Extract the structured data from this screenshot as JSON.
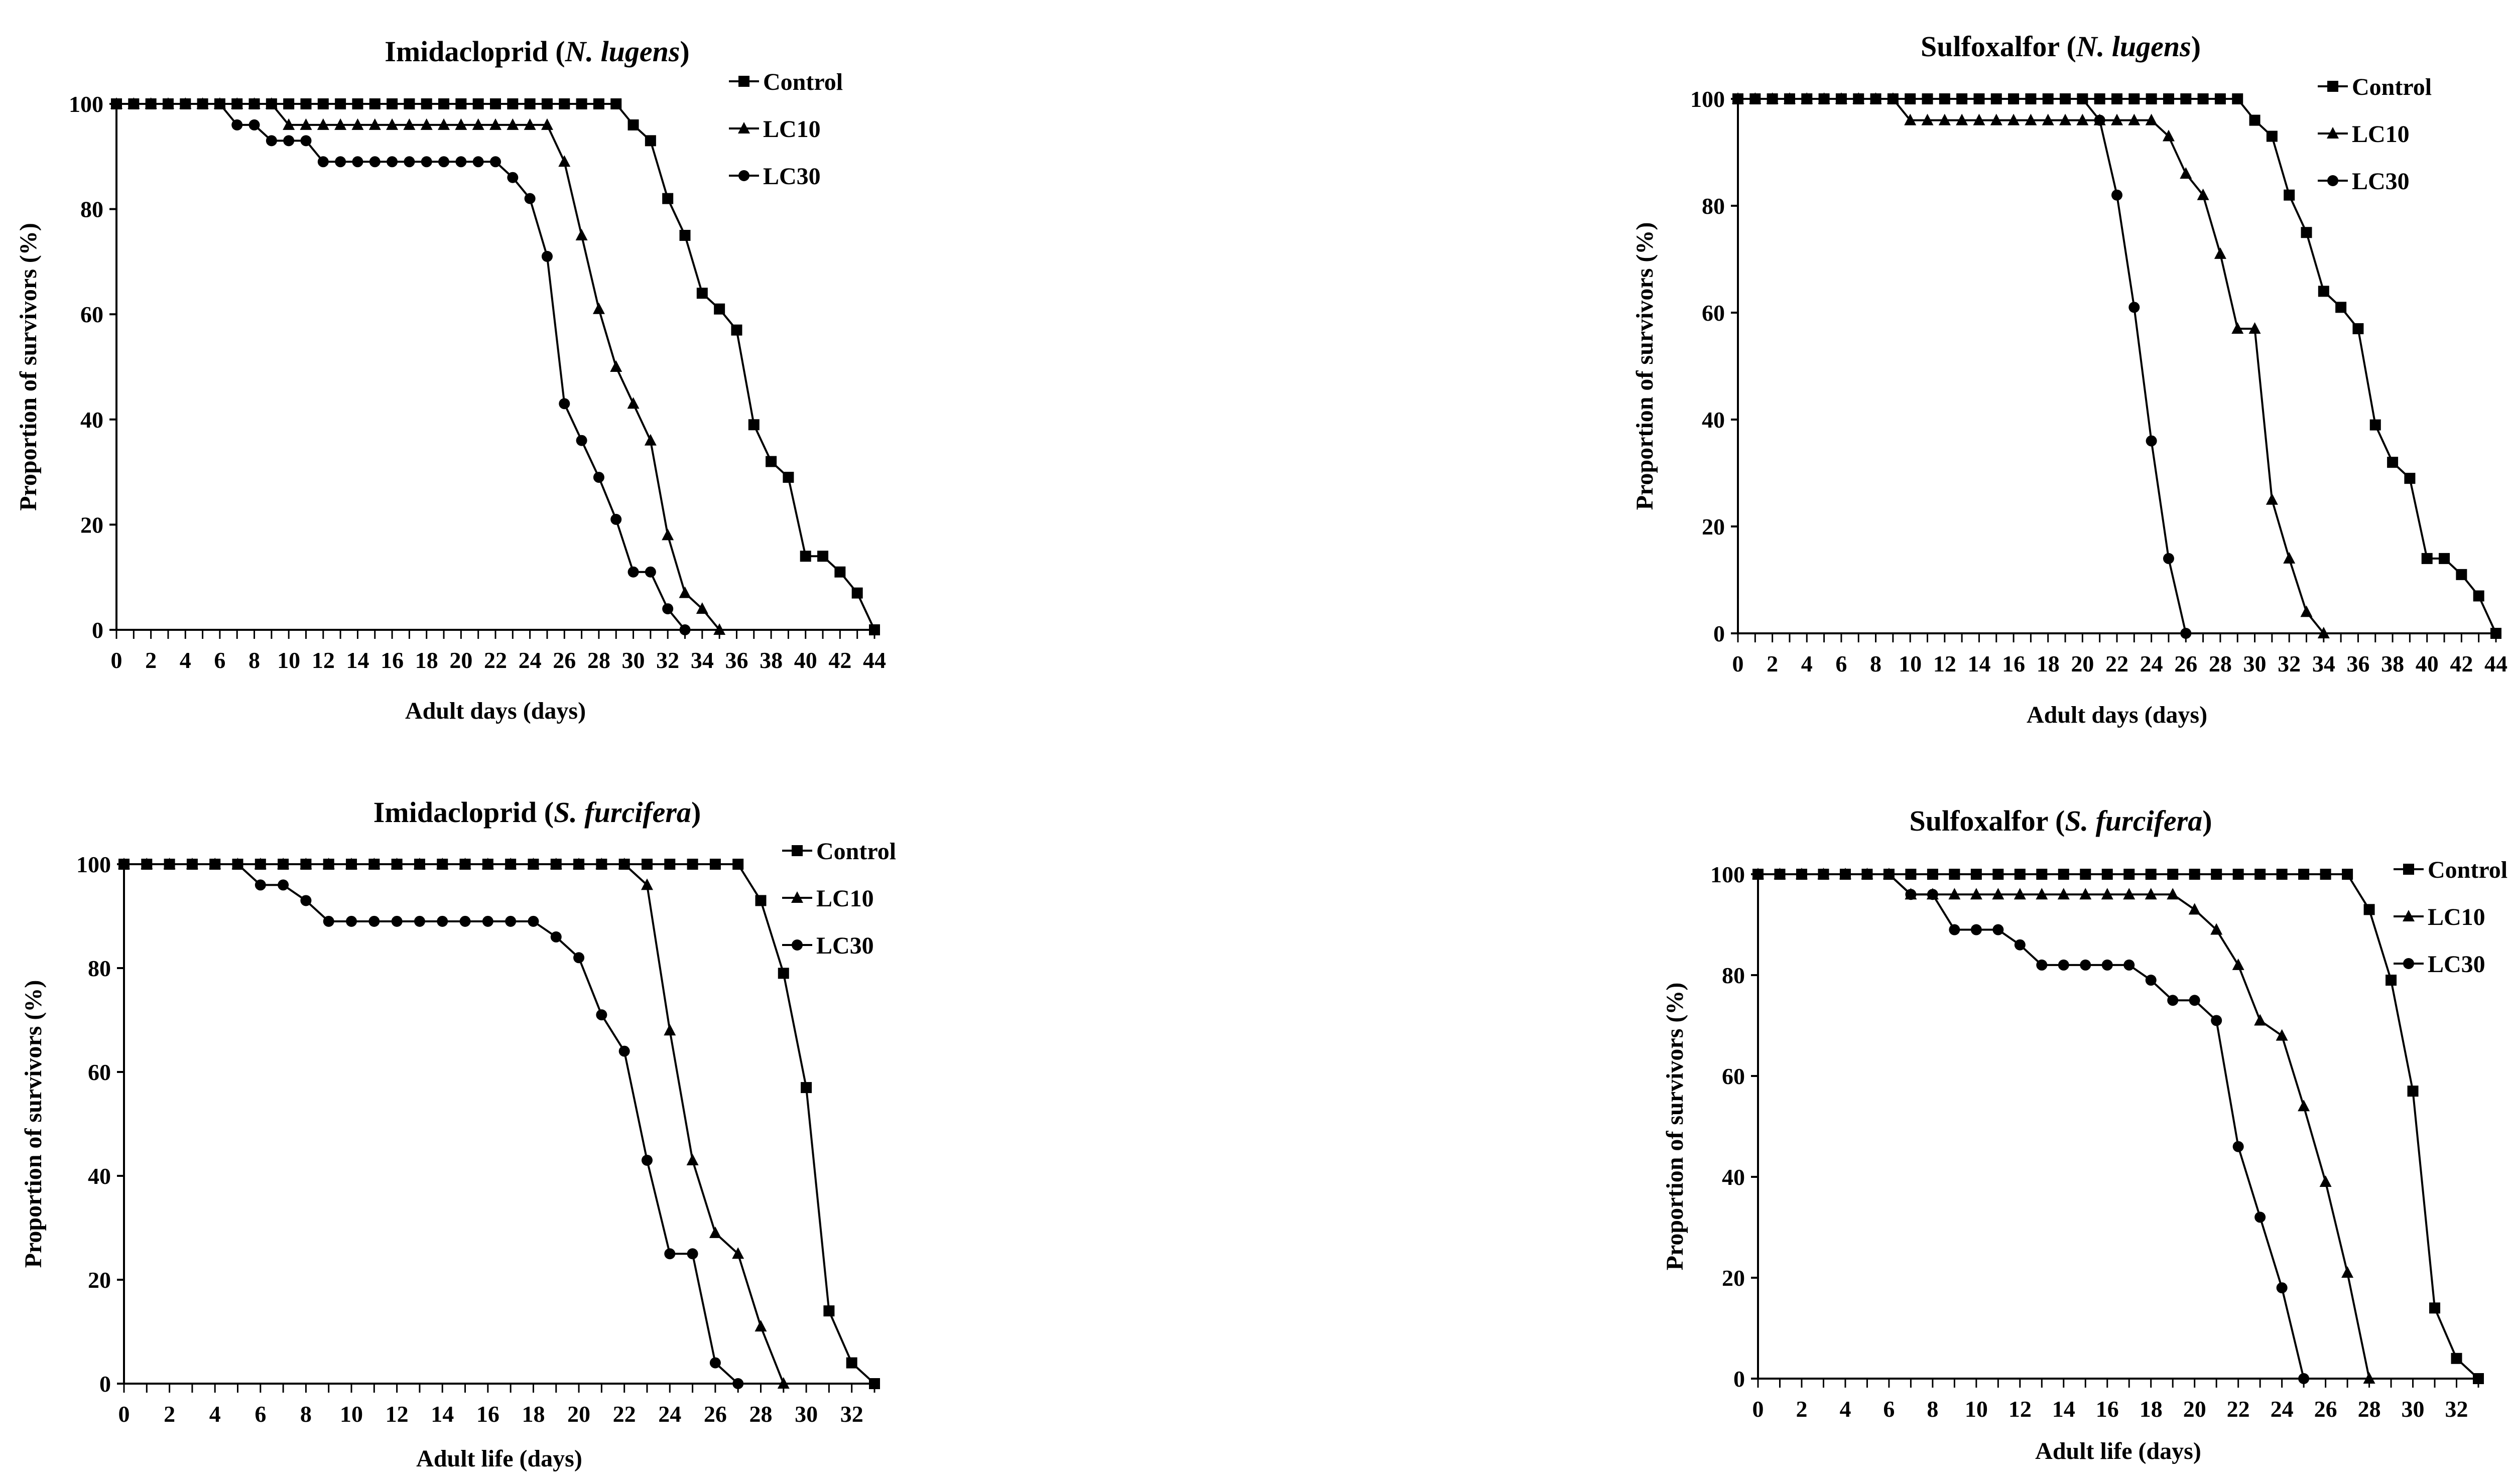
{
  "colors": {
    "line": "#000000",
    "background": "#ffffff"
  },
  "chart_data": [
    {
      "type": "line",
      "title_prefix": "Imidacloprid (",
      "title_species": "N. lugens",
      "title_suffix": ")",
      "xlabel": "Adult days (days)",
      "ylabel": "Proportion of survivors (%)",
      "xlim": [
        0,
        44
      ],
      "ylim": [
        0,
        100
      ],
      "xticks": [
        0,
        2,
        4,
        6,
        8,
        10,
        12,
        14,
        16,
        18,
        20,
        22,
        24,
        26,
        28,
        30,
        32,
        34,
        36,
        38,
        40,
        42,
        44
      ],
      "yticks": [
        0,
        20,
        40,
        60,
        80,
        100
      ],
      "legend_position": "top-right",
      "series": [
        {
          "name": "Control",
          "marker": "square",
          "x": [
            0,
            1,
            2,
            3,
            4,
            5,
            6,
            7,
            8,
            9,
            10,
            11,
            12,
            13,
            14,
            15,
            16,
            17,
            18,
            19,
            20,
            21,
            22,
            23,
            24,
            25,
            26,
            27,
            28,
            29,
            30,
            31,
            32,
            33,
            34,
            35,
            36,
            37,
            38,
            39,
            40,
            41,
            42,
            43,
            44
          ],
          "y": [
            100,
            100,
            100,
            100,
            100,
            100,
            100,
            100,
            100,
            100,
            100,
            100,
            100,
            100,
            100,
            100,
            100,
            100,
            100,
            100,
            100,
            100,
            100,
            100,
            100,
            100,
            100,
            100,
            100,
            100,
            96,
            93,
            82,
            75,
            64,
            61,
            57,
            39,
            32,
            29,
            14,
            14,
            11,
            7,
            0
          ]
        },
        {
          "name": "LC10",
          "marker": "triangle",
          "x": [
            0,
            1,
            2,
            3,
            4,
            5,
            6,
            7,
            8,
            9,
            10,
            11,
            12,
            13,
            14,
            15,
            16,
            17,
            18,
            19,
            20,
            21,
            22,
            23,
            24,
            25,
            26,
            27,
            28,
            29,
            30,
            31,
            32,
            33,
            34,
            35
          ],
          "y": [
            100,
            100,
            100,
            100,
            100,
            100,
            100,
            100,
            100,
            100,
            96,
            96,
            96,
            96,
            96,
            96,
            96,
            96,
            96,
            96,
            96,
            96,
            96,
            96,
            96,
            96,
            89,
            75,
            61,
            50,
            43,
            36,
            18,
            7,
            4,
            0
          ]
        },
        {
          "name": "LC30",
          "marker": "circle",
          "x": [
            0,
            1,
            2,
            3,
            4,
            5,
            6,
            7,
            8,
            9,
            10,
            11,
            12,
            13,
            14,
            15,
            16,
            17,
            18,
            19,
            20,
            21,
            22,
            23,
            24,
            25,
            26,
            27,
            28,
            29,
            30,
            31,
            32,
            33
          ],
          "y": [
            100,
            100,
            100,
            100,
            100,
            100,
            100,
            96,
            96,
            93,
            93,
            93,
            89,
            89,
            89,
            89,
            89,
            89,
            89,
            89,
            89,
            89,
            89,
            86,
            82,
            71,
            43,
            36,
            29,
            21,
            11,
            11,
            4,
            0
          ]
        }
      ]
    },
    {
      "type": "line",
      "title_prefix": "Sulfoxalfor (",
      "title_species": "N. lugens",
      "title_suffix": ")",
      "xlabel": "Adult days (days)",
      "ylabel": "Proportion of survivors (%)",
      "xlim": [
        0,
        44
      ],
      "ylim": [
        0,
        100
      ],
      "xticks": [
        0,
        2,
        4,
        6,
        8,
        10,
        12,
        14,
        16,
        18,
        20,
        22,
        24,
        26,
        28,
        30,
        32,
        34,
        36,
        38,
        40,
        42,
        44
      ],
      "yticks": [
        0,
        20,
        40,
        60,
        80,
        100
      ],
      "legend_position": "top-right",
      "series": [
        {
          "name": "Control",
          "marker": "square",
          "x": [
            0,
            1,
            2,
            3,
            4,
            5,
            6,
            7,
            8,
            9,
            10,
            11,
            12,
            13,
            14,
            15,
            16,
            17,
            18,
            19,
            20,
            21,
            22,
            23,
            24,
            25,
            26,
            27,
            28,
            29,
            30,
            31,
            32,
            33,
            34,
            35,
            36,
            37,
            38,
            39,
            40,
            41,
            42,
            43,
            44
          ],
          "y": [
            100,
            100,
            100,
            100,
            100,
            100,
            100,
            100,
            100,
            100,
            100,
            100,
            100,
            100,
            100,
            100,
            100,
            100,
            100,
            100,
            100,
            100,
            100,
            100,
            100,
            100,
            100,
            100,
            100,
            100,
            96,
            93,
            82,
            75,
            64,
            61,
            57,
            39,
            32,
            29,
            14,
            14,
            11,
            7,
            0
          ]
        },
        {
          "name": "LC10",
          "marker": "triangle",
          "x": [
            0,
            1,
            2,
            3,
            4,
            5,
            6,
            7,
            8,
            9,
            10,
            11,
            12,
            13,
            14,
            15,
            16,
            17,
            18,
            19,
            20,
            21,
            22,
            23,
            24,
            25,
            26,
            27,
            28,
            29,
            30,
            31,
            32,
            33,
            34
          ],
          "y": [
            100,
            100,
            100,
            100,
            100,
            100,
            100,
            100,
            100,
            100,
            96,
            96,
            96,
            96,
            96,
            96,
            96,
            96,
            96,
            96,
            96,
            96,
            96,
            96,
            96,
            93,
            86,
            82,
            71,
            57,
            57,
            25,
            14,
            4,
            0
          ]
        },
        {
          "name": "LC30",
          "marker": "circle",
          "x": [
            0,
            1,
            2,
            3,
            4,
            5,
            6,
            7,
            8,
            9,
            10,
            11,
            12,
            13,
            14,
            15,
            16,
            17,
            18,
            19,
            20,
            21,
            22,
            23,
            24,
            25,
            26
          ],
          "y": [
            100,
            100,
            100,
            100,
            100,
            100,
            100,
            100,
            100,
            100,
            100,
            100,
            100,
            100,
            100,
            100,
            100,
            100,
            100,
            100,
            100,
            96,
            82,
            61,
            36,
            14,
            0
          ]
        }
      ]
    },
    {
      "type": "line",
      "title_prefix": "Imidacloprid (",
      "title_species": "S. furcifera",
      "title_suffix": ")",
      "xlabel": "Adult  life (days)",
      "ylabel": "Proportion of survivors (%)",
      "xlim": [
        0,
        33
      ],
      "ylim": [
        0,
        100
      ],
      "xticks": [
        0,
        2,
        4,
        6,
        8,
        10,
        12,
        14,
        16,
        18,
        20,
        22,
        24,
        26,
        28,
        30,
        32
      ],
      "yticks": [
        0,
        20,
        40,
        60,
        80,
        100
      ],
      "legend_position": "top-right",
      "series": [
        {
          "name": "Control",
          "marker": "square",
          "x": [
            0,
            1,
            2,
            3,
            4,
            5,
            6,
            7,
            8,
            9,
            10,
            11,
            12,
            13,
            14,
            15,
            16,
            17,
            18,
            19,
            20,
            21,
            22,
            23,
            24,
            25,
            26,
            27,
            28,
            29,
            30,
            31,
            32,
            33
          ],
          "y": [
            100,
            100,
            100,
            100,
            100,
            100,
            100,
            100,
            100,
            100,
            100,
            100,
            100,
            100,
            100,
            100,
            100,
            100,
            100,
            100,
            100,
            100,
            100,
            100,
            100,
            100,
            100,
            100,
            93,
            79,
            57,
            14,
            4,
            0
          ]
        },
        {
          "name": "LC10",
          "marker": "triangle",
          "x": [
            0,
            1,
            2,
            3,
            4,
            5,
            6,
            7,
            8,
            9,
            10,
            11,
            12,
            13,
            14,
            15,
            16,
            17,
            18,
            19,
            20,
            21,
            22,
            23,
            24,
            25,
            26,
            27,
            28,
            29
          ],
          "y": [
            100,
            100,
            100,
            100,
            100,
            100,
            100,
            100,
            100,
            100,
            100,
            100,
            100,
            100,
            100,
            100,
            100,
            100,
            100,
            100,
            100,
            100,
            100,
            96,
            68,
            43,
            29,
            25,
            11,
            0
          ]
        },
        {
          "name": "LC30",
          "marker": "circle",
          "x": [
            0,
            1,
            2,
            3,
            4,
            5,
            6,
            7,
            8,
            9,
            10,
            11,
            12,
            13,
            14,
            15,
            16,
            17,
            18,
            19,
            20,
            21,
            22,
            23,
            24,
            25,
            26,
            27
          ],
          "y": [
            100,
            100,
            100,
            100,
            100,
            100,
            96,
            96,
            93,
            89,
            89,
            89,
            89,
            89,
            89,
            89,
            89,
            89,
            89,
            86,
            82,
            71,
            64,
            43,
            25,
            25,
            4,
            0
          ]
        }
      ]
    },
    {
      "type": "line",
      "title_prefix": "Sulfoxalfor (",
      "title_species": "S. furcifera",
      "title_suffix": ")",
      "xlabel": "Adult life (days)",
      "ylabel": "Proportion of survivors (%)",
      "xlim": [
        0,
        33
      ],
      "ylim": [
        0,
        100
      ],
      "xticks": [
        0,
        2,
        4,
        6,
        8,
        10,
        12,
        14,
        16,
        18,
        20,
        22,
        24,
        26,
        28,
        30,
        32
      ],
      "yticks": [
        0,
        20,
        40,
        60,
        80,
        100
      ],
      "legend_position": "top-right",
      "series": [
        {
          "name": "Control",
          "marker": "square",
          "x": [
            0,
            1,
            2,
            3,
            4,
            5,
            6,
            7,
            8,
            9,
            10,
            11,
            12,
            13,
            14,
            15,
            16,
            17,
            18,
            19,
            20,
            21,
            22,
            23,
            24,
            25,
            26,
            27,
            28,
            29,
            30,
            31,
            32,
            33
          ],
          "y": [
            100,
            100,
            100,
            100,
            100,
            100,
            100,
            100,
            100,
            100,
            100,
            100,
            100,
            100,
            100,
            100,
            100,
            100,
            100,
            100,
            100,
            100,
            100,
            100,
            100,
            100,
            100,
            100,
            93,
            79,
            57,
            14,
            4,
            0
          ]
        },
        {
          "name": "LC10",
          "marker": "triangle",
          "x": [
            0,
            1,
            2,
            3,
            4,
            5,
            6,
            7,
            8,
            9,
            10,
            11,
            12,
            13,
            14,
            15,
            16,
            17,
            18,
            19,
            20,
            21,
            22,
            23,
            24,
            25,
            26,
            27,
            28
          ],
          "y": [
            100,
            100,
            100,
            100,
            100,
            100,
            100,
            96,
            96,
            96,
            96,
            96,
            96,
            96,
            96,
            96,
            96,
            96,
            96,
            96,
            93,
            89,
            82,
            71,
            68,
            54,
            39,
            21,
            0
          ]
        },
        {
          "name": "LC30",
          "marker": "circle",
          "x": [
            0,
            1,
            2,
            3,
            4,
            5,
            6,
            7,
            8,
            9,
            10,
            11,
            12,
            13,
            14,
            15,
            16,
            17,
            18,
            19,
            20,
            21,
            22,
            23,
            24,
            25
          ],
          "y": [
            100,
            100,
            100,
            100,
            100,
            100,
            100,
            96,
            96,
            89,
            89,
            89,
            86,
            82,
            82,
            82,
            82,
            82,
            79,
            75,
            75,
            71,
            46,
            32,
            18,
            0
          ]
        }
      ]
    }
  ]
}
